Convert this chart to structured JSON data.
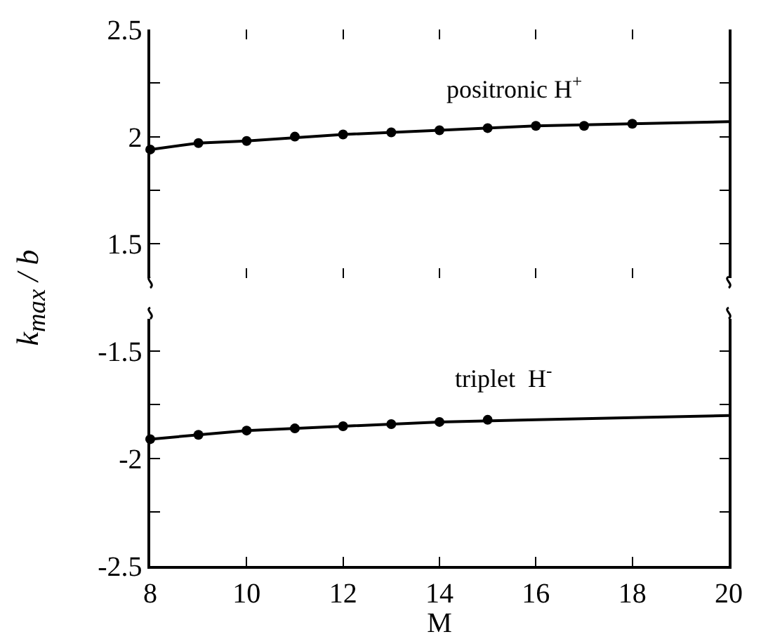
{
  "chart_data": [
    {
      "type": "line",
      "ylabel": "k$_{max}$ / b",
      "series": [
        {
          "type": "line",
          "color": "#000000",
          "marker": "none",
          "x": [
            8,
            9,
            10,
            12,
            14,
            16,
            18,
            20
          ],
          "values": [
            1.94,
            1.97,
            1.98,
            2.01,
            2.03,
            2.05,
            2.06,
            2.07
          ]
        },
        {
          "type": "scatter",
          "color": "#000000",
          "marker": "circle",
          "x": [
            8,
            9,
            10,
            11,
            12,
            13,
            14,
            15,
            16,
            17,
            18
          ],
          "values": [
            1.94,
            1.97,
            1.98,
            2.0,
            2.01,
            2.02,
            2.03,
            2.04,
            2.05,
            2.05,
            2.06
          ]
        }
      ],
      "annotations": [
        "positronic H$^{+}$"
      ],
      "xlim": [
        8,
        20
      ],
      "xticks": [
        {
          "value": 8,
          "label": null
        },
        {
          "value": 10,
          "label": null
        },
        {
          "value": 12,
          "label": null
        },
        {
          "value": 14,
          "label": null
        },
        {
          "value": 16,
          "label": null
        },
        {
          "value": 18,
          "label": null
        },
        {
          "value": 20,
          "label": null
        }
      ],
      "ylim": [
        1.34,
        2.5
      ],
      "yticks": [
        1.5,
        {
          "value": 1.75,
          "label": null
        },
        2,
        {
          "value": 2.25,
          "label": null
        },
        2.5
      ],
      "tick_labels": "y"
    },
    {
      "type": "line",
      "xlabel": "M",
      "series": [
        {
          "type": "line",
          "color": "#000000",
          "marker": "none",
          "x": [
            8,
            9,
            10,
            12,
            14,
            16,
            18,
            20
          ],
          "values": [
            -1.91,
            -1.89,
            -1.87,
            -1.85,
            -1.83,
            -1.82,
            -1.81,
            -1.8
          ]
        },
        {
          "type": "scatter",
          "color": "#000000",
          "marker": "circle",
          "x": [
            8,
            9,
            10,
            11,
            12,
            13,
            14,
            15
          ],
          "values": [
            -1.91,
            -1.89,
            -1.87,
            -1.86,
            -1.85,
            -1.84,
            -1.83,
            -1.82
          ]
        }
      ],
      "annotations": [
        "triplet  H$^{-}$"
      ],
      "xlim": [
        8,
        20
      ],
      "xticks": [
        8,
        10,
        12,
        14,
        16,
        18,
        20
      ],
      "ylim": [
        -2.5,
        -1.35
      ],
      "yticks": [
        -2.5,
        {
          "value": -2.25,
          "label": null
        },
        -2,
        {
          "value": -1.75,
          "label": null
        },
        -1.5
      ]
    }
  ]
}
